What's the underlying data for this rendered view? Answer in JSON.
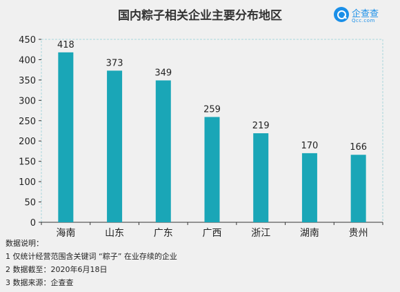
{
  "header": {
    "title": "国内粽子相关企业主要分布地区",
    "logo_name": "企查查",
    "logo_sub": "Qcc.com"
  },
  "chart_data": {
    "type": "bar",
    "title": "国内粽子相关企业主要分布地区",
    "categories": [
      "海南",
      "山东",
      "广东",
      "广西",
      "浙江",
      "湖南",
      "贵州"
    ],
    "values": [
      418,
      373,
      349,
      259,
      219,
      170,
      166
    ],
    "ylim": [
      0,
      450
    ],
    "yticks": [
      0,
      50,
      100,
      150,
      200,
      250,
      300,
      350,
      400,
      450
    ],
    "xlabel": "",
    "ylabel": "",
    "bar_color": "#1aa6b7",
    "grid": false
  },
  "notes": {
    "heading": "数据说明：",
    "lines": [
      "1 仅统计经营范围含关键词 “粽子” 在业存续的企业",
      "2 数据截至：2020年6月18日",
      "3 数据来源：企查查"
    ]
  }
}
